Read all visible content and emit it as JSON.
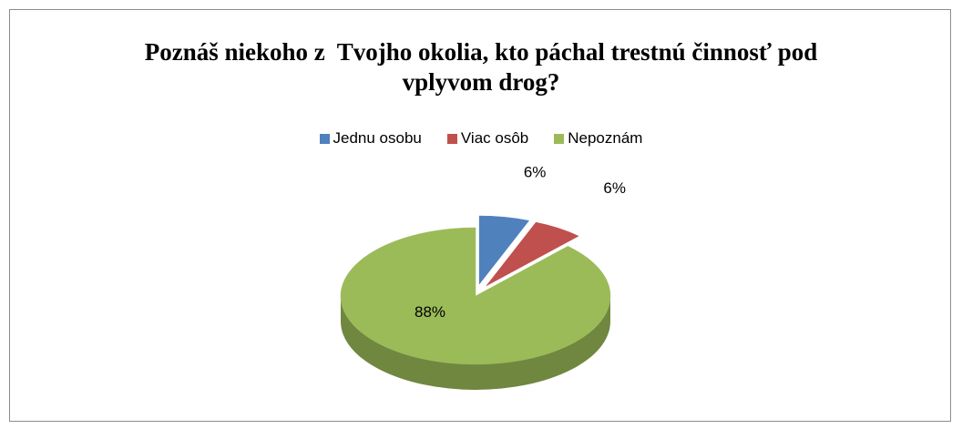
{
  "chart_data": {
    "type": "pie",
    "title": "Poznáš niekoho z  Tvojho okolia, kto páchal trestnú činnosť pod vplyvom drog?",
    "categories": [
      "Jednu osobu",
      "Viac osôb",
      "Nepoznám"
    ],
    "values": [
      6,
      6,
      88
    ],
    "value_labels": [
      "6%",
      "6%",
      "88%"
    ],
    "colors": [
      "#4f81bd",
      "#c0504d",
      "#9bbb59"
    ],
    "legend": "top"
  }
}
